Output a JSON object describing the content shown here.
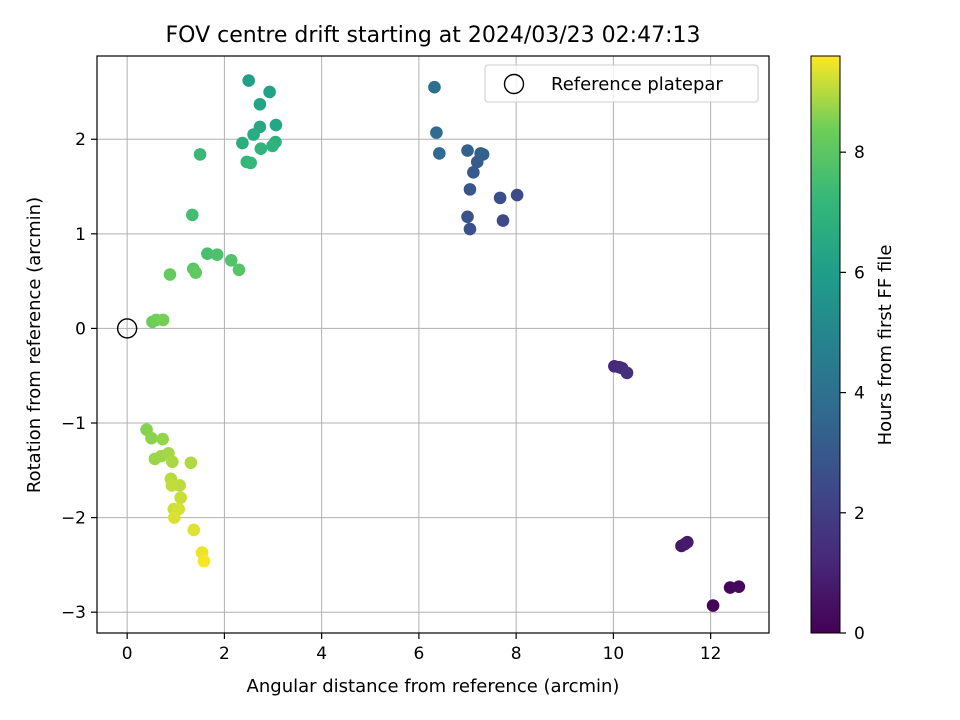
{
  "chart_data": {
    "type": "scatter",
    "title": "FOV centre drift starting at 2024/03/23 02:47:13",
    "xlabel": "Angular distance from reference (arcmin)",
    "ylabel": "Rotation from reference (arcmin)",
    "xlim": [
      -0.62,
      13.2
    ],
    "ylim": [
      -3.22,
      2.88
    ],
    "xticks": [
      0,
      2,
      4,
      6,
      8,
      10,
      12
    ],
    "yticks": [
      -3,
      -2,
      -1,
      0,
      1,
      2
    ],
    "xtick_labels": [
      "0",
      "2",
      "4",
      "6",
      "8",
      "10",
      "12"
    ],
    "ytick_labels": [
      "−3",
      "−2",
      "−1",
      "0",
      "1",
      "2"
    ],
    "grid": true,
    "legend": {
      "placement": "top-right",
      "entries": [
        {
          "label": "Reference platepar",
          "marker": "open-circle"
        }
      ]
    },
    "reference_point": {
      "x": 0,
      "y": 0
    },
    "colorbar": {
      "label": "Hours from first FF file",
      "colormap": "viridis",
      "range": [
        0,
        9.6
      ],
      "ticks": [
        0,
        2,
        4,
        6,
        8
      ],
      "tick_labels": [
        "0",
        "2",
        "4",
        "6",
        "8"
      ]
    },
    "points": [
      {
        "x": 12.05,
        "y": -2.93,
        "c": 0.05
      },
      {
        "x": 12.4,
        "y": -2.74,
        "c": 0.15
      },
      {
        "x": 12.58,
        "y": -2.73,
        "c": 0.25
      },
      {
        "x": 11.4,
        "y": -2.3,
        "c": 0.6
      },
      {
        "x": 11.47,
        "y": -2.28,
        "c": 0.7
      },
      {
        "x": 11.52,
        "y": -2.26,
        "c": 0.8
      },
      {
        "x": 10.02,
        "y": -0.4,
        "c": 1.2
      },
      {
        "x": 10.12,
        "y": -0.41,
        "c": 1.3
      },
      {
        "x": 10.18,
        "y": -0.42,
        "c": 1.4
      },
      {
        "x": 10.28,
        "y": -0.47,
        "c": 1.5
      },
      {
        "x": 7.73,
        "y": 1.14,
        "c": 2.4
      },
      {
        "x": 8.02,
        "y": 1.41,
        "c": 2.5
      },
      {
        "x": 7.67,
        "y": 1.38,
        "c": 2.6
      },
      {
        "x": 7.05,
        "y": 1.05,
        "c": 2.7
      },
      {
        "x": 7.0,
        "y": 1.18,
        "c": 2.8
      },
      {
        "x": 7.05,
        "y": 1.47,
        "c": 2.9
      },
      {
        "x": 7.12,
        "y": 1.65,
        "c": 3.0
      },
      {
        "x": 7.2,
        "y": 1.76,
        "c": 3.1
      },
      {
        "x": 7.27,
        "y": 1.85,
        "c": 3.2
      },
      {
        "x": 7.32,
        "y": 1.84,
        "c": 3.3
      },
      {
        "x": 7.0,
        "y": 1.88,
        "c": 3.4
      },
      {
        "x": 6.42,
        "y": 1.85,
        "c": 3.7
      },
      {
        "x": 6.36,
        "y": 2.07,
        "c": 3.8
      },
      {
        "x": 6.32,
        "y": 2.55,
        "c": 3.9
      },
      {
        "x": 2.5,
        "y": 2.62,
        "c": 6.1
      },
      {
        "x": 2.93,
        "y": 2.5,
        "c": 6.2
      },
      {
        "x": 2.73,
        "y": 2.37,
        "c": 6.3
      },
      {
        "x": 3.06,
        "y": 2.15,
        "c": 6.4
      },
      {
        "x": 2.73,
        "y": 2.13,
        "c": 6.5
      },
      {
        "x": 2.6,
        "y": 2.05,
        "c": 6.6
      },
      {
        "x": 2.37,
        "y": 1.96,
        "c": 6.7
      },
      {
        "x": 3.05,
        "y": 1.97,
        "c": 6.8
      },
      {
        "x": 2.99,
        "y": 1.93,
        "c": 6.9
      },
      {
        "x": 2.75,
        "y": 1.9,
        "c": 7.0
      },
      {
        "x": 2.46,
        "y": 1.76,
        "c": 7.1
      },
      {
        "x": 2.54,
        "y": 1.75,
        "c": 7.2
      },
      {
        "x": 1.5,
        "y": 1.84,
        "c": 7.3
      },
      {
        "x": 1.34,
        "y": 1.2,
        "c": 7.5
      },
      {
        "x": 1.65,
        "y": 0.79,
        "c": 7.6
      },
      {
        "x": 1.85,
        "y": 0.78,
        "c": 7.7
      },
      {
        "x": 2.14,
        "y": 0.72,
        "c": 7.8
      },
      {
        "x": 2.3,
        "y": 0.62,
        "c": 7.9
      },
      {
        "x": 1.36,
        "y": 0.63,
        "c": 8.0
      },
      {
        "x": 1.41,
        "y": 0.59,
        "c": 8.1
      },
      {
        "x": 0.88,
        "y": 0.57,
        "c": 8.2
      },
      {
        "x": 0.52,
        "y": 0.07,
        "c": 8.3
      },
      {
        "x": 0.6,
        "y": 0.09,
        "c": 8.4
      },
      {
        "x": 0.74,
        "y": 0.09,
        "c": 8.45
      },
      {
        "x": 0.4,
        "y": -1.07,
        "c": 8.6
      },
      {
        "x": 0.5,
        "y": -1.16,
        "c": 8.65
      },
      {
        "x": 0.73,
        "y": -1.17,
        "c": 8.7
      },
      {
        "x": 0.57,
        "y": -1.38,
        "c": 8.75
      },
      {
        "x": 0.7,
        "y": -1.35,
        "c": 8.8
      },
      {
        "x": 0.85,
        "y": -1.32,
        "c": 8.85
      },
      {
        "x": 0.93,
        "y": -1.41,
        "c": 8.9
      },
      {
        "x": 1.31,
        "y": -1.42,
        "c": 8.95
      },
      {
        "x": 0.9,
        "y": -1.59,
        "c": 9.0
      },
      {
        "x": 1.08,
        "y": -1.66,
        "c": 9.05
      },
      {
        "x": 0.92,
        "y": -1.66,
        "c": 9.1
      },
      {
        "x": 1.1,
        "y": -1.79,
        "c": 9.15
      },
      {
        "x": 0.96,
        "y": -1.91,
        "c": 9.2
      },
      {
        "x": 1.06,
        "y": -1.91,
        "c": 9.25
      },
      {
        "x": 0.97,
        "y": -2.0,
        "c": 9.3
      },
      {
        "x": 1.37,
        "y": -2.13,
        "c": 9.35
      },
      {
        "x": 1.54,
        "y": -2.37,
        "c": 9.45
      },
      {
        "x": 1.58,
        "y": -2.46,
        "c": 9.55
      }
    ]
  }
}
